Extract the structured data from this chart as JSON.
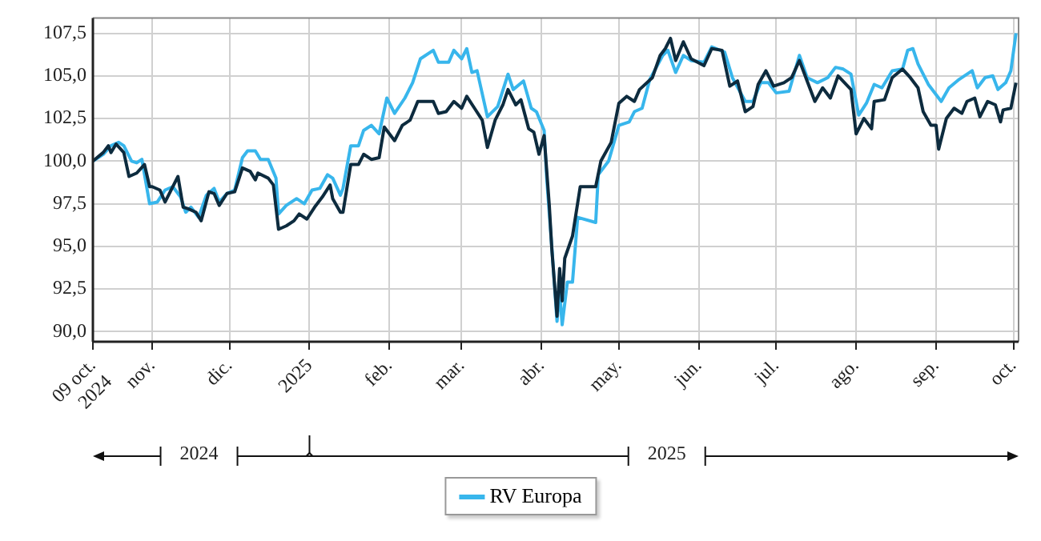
{
  "chart_data": {
    "type": "line",
    "xlim": [
      "2024-10-09",
      "2025-10-03"
    ],
    "ylim": [
      89.4,
      108.4
    ],
    "xticks": [
      {
        "value": "2024-10-09",
        "label": "09 oct.\n2024"
      },
      {
        "value": "2024-11-01",
        "label": "nov."
      },
      {
        "value": "2024-12-01",
        "label": "dic."
      },
      {
        "value": "2025-01-01",
        "label": "2025"
      },
      {
        "value": "2025-02-01",
        "label": "feb."
      },
      {
        "value": "2025-03-01",
        "label": "mar."
      },
      {
        "value": "2025-04-01",
        "label": "abr."
      },
      {
        "value": "2025-05-01",
        "label": "may."
      },
      {
        "value": "2025-06-01",
        "label": "jun."
      },
      {
        "value": "2025-07-01",
        "label": "jul."
      },
      {
        "value": "2025-08-01",
        "label": "ago."
      },
      {
        "value": "2025-09-01",
        "label": "sep."
      },
      {
        "value": "2025-10-01",
        "label": "oct."
      }
    ],
    "yticks": [
      {
        "value": 90,
        "label": "90,0"
      },
      {
        "value": 92.5,
        "label": "92,5"
      },
      {
        "value": 95,
        "label": "95,0"
      },
      {
        "value": 97.5,
        "label": "97,5"
      },
      {
        "value": 100,
        "label": "100,0"
      },
      {
        "value": 102.5,
        "label": "102,5"
      },
      {
        "value": 105,
        "label": "105,0"
      },
      {
        "value": 107.5,
        "label": "107,5"
      }
    ],
    "grid": true,
    "legend": "bottom",
    "marker": "none",
    "line_style": "solid",
    "annotations": [
      "2024",
      "2025"
    ],
    "series": [
      {
        "color": "#0d2b3e",
        "x": [
          "2024-10-09",
          "2024-10-13",
          "2024-10-15",
          "2024-10-16",
          "2024-10-18",
          "2024-10-21",
          "2024-10-23",
          "2024-10-26",
          "2024-10-29",
          "2024-10-31",
          "2024-11-01",
          "2024-11-04",
          "2024-11-06",
          "2024-11-08",
          "2024-11-11",
          "2024-11-13",
          "2024-11-15",
          "2024-11-18",
          "2024-11-20",
          "2024-11-23",
          "2024-11-25",
          "2024-11-27",
          "2024-11-30",
          "2024-12-03",
          "2024-12-06",
          "2024-12-09",
          "2024-12-11",
          "2024-12-12",
          "2024-12-16",
          "2024-12-18",
          "2024-12-20",
          "2024-12-23",
          "2024-12-26",
          "2024-12-28",
          "2024-12-31",
          "2025-01-03",
          "2025-01-06",
          "2025-01-09",
          "2025-01-10",
          "2025-01-13",
          "2025-01-14",
          "2025-01-17",
          "2025-01-20",
          "2025-01-22",
          "2025-01-25",
          "2025-01-28",
          "2025-01-30",
          "2025-02-03",
          "2025-02-06",
          "2025-02-09",
          "2025-02-12",
          "2025-02-18",
          "2025-02-20",
          "2025-02-23",
          "2025-02-26",
          "2025-03-01",
          "2025-03-03",
          "2025-03-06",
          "2025-03-09",
          "2025-03-11",
          "2025-03-14",
          "2025-03-17",
          "2025-03-19",
          "2025-03-22",
          "2025-03-24",
          "2025-03-27",
          "2025-03-29",
          "2025-03-31",
          "2025-04-02",
          "2025-04-04",
          "2025-04-05",
          "2025-04-07",
          "2025-04-08",
          "2025-04-09",
          "2025-04-10",
          "2025-04-13",
          "2025-04-16",
          "2025-04-22",
          "2025-04-24",
          "2025-04-28",
          "2025-05-01",
          "2025-05-04",
          "2025-05-07",
          "2025-05-09",
          "2025-05-14",
          "2025-05-17",
          "2025-05-19",
          "2025-05-21",
          "2025-05-23",
          "2025-05-26",
          "2025-05-29",
          "2025-06-03",
          "2025-06-06",
          "2025-06-10",
          "2025-06-13",
          "2025-06-16",
          "2025-06-19",
          "2025-06-22",
          "2025-06-24",
          "2025-06-27",
          "2025-06-30",
          "2025-07-04",
          "2025-07-07",
          "2025-07-10",
          "2025-07-13",
          "2025-07-16",
          "2025-07-19",
          "2025-07-22",
          "2025-07-25",
          "2025-07-30",
          "2025-08-01",
          "2025-08-04",
          "2025-08-07",
          "2025-08-08",
          "2025-08-12",
          "2025-08-15",
          "2025-08-19",
          "2025-08-22",
          "2025-08-25",
          "2025-08-27",
          "2025-08-30",
          "2025-09-01",
          "2025-09-02",
          "2025-09-05",
          "2025-09-08",
          "2025-09-11",
          "2025-09-13",
          "2025-09-16",
          "2025-09-18",
          "2025-09-21",
          "2025-09-24",
          "2025-09-26",
          "2025-09-27",
          "2025-09-30",
          "2025-10-02"
        ],
        "values": [
          100.0,
          100.5,
          100.9,
          100.5,
          101.0,
          100.5,
          99.1,
          99.3,
          99.8,
          98.5,
          98.5,
          98.3,
          97.6,
          98.2,
          99.1,
          97.3,
          97.2,
          97.0,
          96.5,
          98.2,
          98.1,
          97.4,
          98.1,
          98.2,
          99.6,
          99.4,
          98.9,
          99.3,
          99.0,
          98.6,
          96.0,
          96.2,
          96.5,
          96.9,
          96.6,
          97.3,
          97.9,
          98.6,
          97.8,
          97.0,
          97.0,
          99.8,
          99.8,
          100.4,
          100.1,
          100.2,
          102.0,
          101.2,
          102.1,
          102.4,
          103.5,
          103.5,
          102.8,
          102.9,
          103.5,
          103.1,
          103.8,
          103.1,
          102.4,
          100.8,
          102.4,
          103.3,
          104.2,
          103.3,
          103.6,
          101.9,
          101.7,
          100.4,
          101.5,
          97.4,
          94.8,
          90.9,
          93.7,
          91.8,
          94.3,
          95.6,
          98.5,
          98.5,
          100.0,
          101.1,
          103.4,
          103.8,
          103.5,
          104.2,
          104.9,
          106.2,
          106.6,
          107.2,
          105.9,
          107.0,
          106.0,
          105.6,
          106.6,
          106.5,
          104.4,
          104.7,
          102.9,
          103.2,
          104.5,
          105.3,
          104.4,
          104.6,
          104.9,
          105.9,
          104.7,
          103.5,
          104.3,
          103.7,
          105.0,
          104.2,
          101.6,
          102.5,
          101.9,
          103.5,
          103.6,
          104.9,
          105.4,
          104.9,
          104.3,
          102.9,
          102.1,
          102.1,
          100.7,
          102.5,
          103.1,
          102.8,
          103.5,
          103.7,
          102.6,
          103.5,
          103.3,
          102.3,
          103.0,
          103.1,
          104.6
        ]
      },
      {
        "name": "RV Europa",
        "color": "#38b6ec",
        "x": [
          "2024-10-09",
          "2024-10-13",
          "2024-10-16",
          "2024-10-19",
          "2024-10-21",
          "2024-10-24",
          "2024-10-26",
          "2024-10-28",
          "2024-10-31",
          "2024-11-03",
          "2024-11-06",
          "2024-11-09",
          "2024-11-12",
          "2024-11-14",
          "2024-11-16",
          "2024-11-19",
          "2024-11-22",
          "2024-11-25",
          "2024-11-27",
          "2024-11-30",
          "2024-12-03",
          "2024-12-06",
          "2024-12-08",
          "2024-12-11",
          "2024-12-13",
          "2024-12-16",
          "2024-12-19",
          "2024-12-20",
          "2024-12-23",
          "2024-12-27",
          "2024-12-30",
          "2025-01-02",
          "2025-01-05",
          "2025-01-08",
          "2025-01-10",
          "2025-01-13",
          "2025-01-14",
          "2025-01-17",
          "2025-01-20",
          "2025-01-22",
          "2025-01-25",
          "2025-01-28",
          "2025-01-31",
          "2025-02-03",
          "2025-02-07",
          "2025-02-10",
          "2025-02-13",
          "2025-02-18",
          "2025-02-20",
          "2025-02-24",
          "2025-02-26",
          "2025-03-01",
          "2025-03-03",
          "2025-03-05",
          "2025-03-07",
          "2025-03-11",
          "2025-03-15",
          "2025-03-19",
          "2025-03-21",
          "2025-03-25",
          "2025-03-28",
          "2025-03-30",
          "2025-04-02",
          "2025-04-03",
          "2025-04-05",
          "2025-04-07",
          "2025-04-08",
          "2025-04-09",
          "2025-04-11",
          "2025-04-13",
          "2025-04-15",
          "2025-04-22",
          "2025-04-23",
          "2025-04-27",
          "2025-05-01",
          "2025-05-05",
          "2025-05-07",
          "2025-05-10",
          "2025-05-13",
          "2025-05-18",
          "2025-05-20",
          "2025-05-23",
          "2025-05-26",
          "2025-05-29",
          "2025-06-03",
          "2025-06-06",
          "2025-06-11",
          "2025-06-14",
          "2025-06-19",
          "2025-06-22",
          "2025-06-25",
          "2025-06-28",
          "2025-07-01",
          "2025-07-06",
          "2025-07-10",
          "2025-07-13",
          "2025-07-17",
          "2025-07-21",
          "2025-07-24",
          "2025-07-27",
          "2025-07-30",
          "2025-08-02",
          "2025-08-05",
          "2025-08-08",
          "2025-08-11",
          "2025-08-15",
          "2025-08-19",
          "2025-08-21",
          "2025-08-23",
          "2025-08-25",
          "2025-08-29",
          "2025-09-03",
          "2025-09-06",
          "2025-09-10",
          "2025-09-15",
          "2025-09-17",
          "2025-09-20",
          "2025-09-23",
          "2025-09-25",
          "2025-09-28",
          "2025-09-30",
          "2025-10-02"
        ],
        "values": [
          100.0,
          100.4,
          100.9,
          101.1,
          100.9,
          100.0,
          99.9,
          100.1,
          97.5,
          97.6,
          98.3,
          98.5,
          97.9,
          97.0,
          97.3,
          96.7,
          98.0,
          98.4,
          97.6,
          98.1,
          98.3,
          100.2,
          100.6,
          100.6,
          100.1,
          100.1,
          99.0,
          96.9,
          97.4,
          97.8,
          97.5,
          98.3,
          98.4,
          99.2,
          99.0,
          98.0,
          98.4,
          100.9,
          100.9,
          101.8,
          102.1,
          101.6,
          103.7,
          102.8,
          103.7,
          104.6,
          106.0,
          106.5,
          105.8,
          105.8,
          106.5,
          106.0,
          106.6,
          105.2,
          105.3,
          102.6,
          103.2,
          105.1,
          104.2,
          104.7,
          103.1,
          102.9,
          101.8,
          99.0,
          94.9,
          90.6,
          92.4,
          90.4,
          92.9,
          92.9,
          96.7,
          96.4,
          99.2,
          100.0,
          102.1,
          102.3,
          102.9,
          103.1,
          104.8,
          106.2,
          106.5,
          105.2,
          106.2,
          105.9,
          105.8,
          106.7,
          106.4,
          104.9,
          103.5,
          103.5,
          104.6,
          104.6,
          104.0,
          104.1,
          106.2,
          104.9,
          104.6,
          104.9,
          105.5,
          105.4,
          105.1,
          102.7,
          103.4,
          104.5,
          104.3,
          105.3,
          105.4,
          106.5,
          106.6,
          105.7,
          104.5,
          103.5,
          104.3,
          104.8,
          105.3,
          104.3,
          104.9,
          105.0,
          104.2,
          104.6,
          105.3,
          107.5
        ]
      }
    ]
  }
}
